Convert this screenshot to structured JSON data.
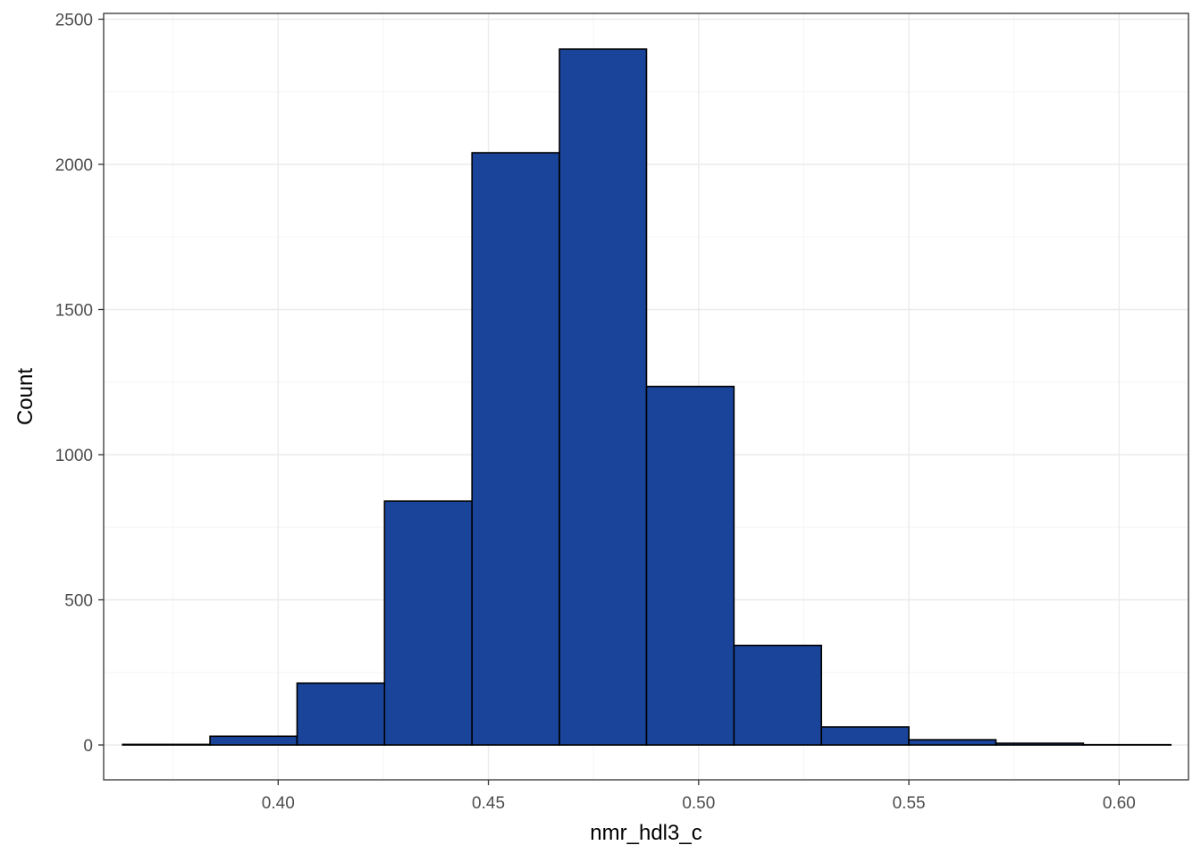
{
  "chart_data": {
    "type": "bar",
    "subtype": "histogram",
    "title": "",
    "xlabel": "nmr_hdl3_c",
    "ylabel": "Count",
    "xlim": [
      0.3585,
      0.6165
    ],
    "ylim": [
      -120,
      2520
    ],
    "x_ticks": [
      0.4,
      0.45,
      0.5,
      0.55,
      0.6
    ],
    "x_tick_labels": [
      "0.40",
      "0.45",
      "0.50",
      "0.55",
      "0.60"
    ],
    "y_ticks": [
      0,
      500,
      1000,
      1500,
      2000,
      2500
    ],
    "y_tick_labels": [
      "0",
      "500",
      "1000",
      "1500",
      "2000",
      "2500"
    ],
    "grid": true,
    "legend": "none",
    "bins": [
      {
        "x0": 0.363,
        "x1": 0.3838,
        "count": 2
      },
      {
        "x0": 0.3838,
        "x1": 0.4045,
        "count": 30
      },
      {
        "x0": 0.4045,
        "x1": 0.4253,
        "count": 213
      },
      {
        "x0": 0.4253,
        "x1": 0.4461,
        "count": 840
      },
      {
        "x0": 0.4461,
        "x1": 0.4669,
        "count": 2040
      },
      {
        "x0": 0.4669,
        "x1": 0.4876,
        "count": 2397
      },
      {
        "x0": 0.4876,
        "x1": 0.5084,
        "count": 1235
      },
      {
        "x0": 0.5084,
        "x1": 0.5292,
        "count": 343
      },
      {
        "x0": 0.5292,
        "x1": 0.55,
        "count": 62
      },
      {
        "x0": 0.55,
        "x1": 0.5707,
        "count": 18
      },
      {
        "x0": 0.5707,
        "x1": 0.5915,
        "count": 6
      },
      {
        "x0": 0.5915,
        "x1": 0.6123,
        "count": 1
      }
    ],
    "colors": {
      "fill": "#19449a",
      "stroke": "#000000",
      "panel_border": "#333333",
      "grid_major": "#ebebeb",
      "grid_minor": "#f5f5f5",
      "tick_text": "#4d4d4d",
      "axis_title": "#000000"
    }
  }
}
